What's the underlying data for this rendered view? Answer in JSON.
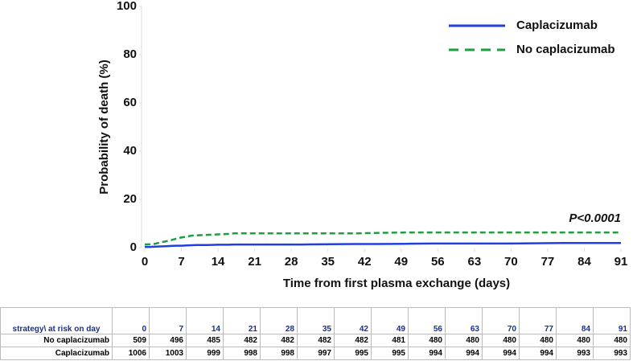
{
  "chart_data": {
    "type": "line",
    "x_label": "Time from first plasma exchange (days)",
    "y_label": "Probability of death (%)",
    "annotation": "P<0.0001",
    "x": [
      0,
      1,
      2,
      3,
      4,
      5,
      6,
      7,
      8,
      9,
      10,
      12,
      14,
      16,
      17,
      20,
      30,
      40,
      44,
      50,
      55,
      60,
      70,
      80,
      85,
      91
    ],
    "series": [
      {
        "name": "Caplacizumab",
        "color": "#1f3fe0",
        "line_style": "solid",
        "values": [
          0.3,
          0.3,
          0.4,
          0.5,
          0.6,
          0.7,
          0.8,
          0.8,
          0.9,
          1.0,
          1.1,
          1.1,
          1.2,
          1.2,
          1.3,
          1.3,
          1.3,
          1.5,
          1.5,
          1.6,
          1.7,
          1.7,
          1.7,
          1.9,
          1.9,
          1.9
        ]
      },
      {
        "name": "No caplacizumab",
        "color": "#1e9e3e",
        "line_style": "dashed",
        "values": [
          1.3,
          1.4,
          1.6,
          2.2,
          2.6,
          3.1,
          3.7,
          4.2,
          4.6,
          5.0,
          5.1,
          5.3,
          5.5,
          5.7,
          5.9,
          5.9,
          5.9,
          5.9,
          6.1,
          6.3,
          6.3,
          6.3,
          6.3,
          6.3,
          6.3,
          6.3
        ]
      }
    ],
    "xlim": [
      0,
      91
    ],
    "xticks": [
      0,
      7,
      14,
      21,
      28,
      35,
      42,
      49,
      56,
      63,
      70,
      77,
      84,
      91
    ],
    "ylim": [
      0,
      100
    ],
    "yticks": [
      0,
      20,
      40,
      60,
      80,
      100
    ],
    "grid": false
  },
  "risk_table": {
    "header": "strategy\\ at risk on day",
    "days": [
      0,
      7,
      14,
      21,
      28,
      35,
      42,
      49,
      56,
      63,
      70,
      77,
      84,
      91
    ],
    "rows": [
      {
        "label": "No caplacizumab",
        "values": [
          509,
          496,
          485,
          482,
          482,
          482,
          482,
          481,
          480,
          480,
          480,
          480,
          480,
          480
        ]
      },
      {
        "label": "Caplacizumab",
        "values": [
          1006,
          1003,
          999,
          998,
          998,
          997,
          995,
          995,
          994,
          994,
          994,
          994,
          993,
          993
        ]
      }
    ]
  }
}
